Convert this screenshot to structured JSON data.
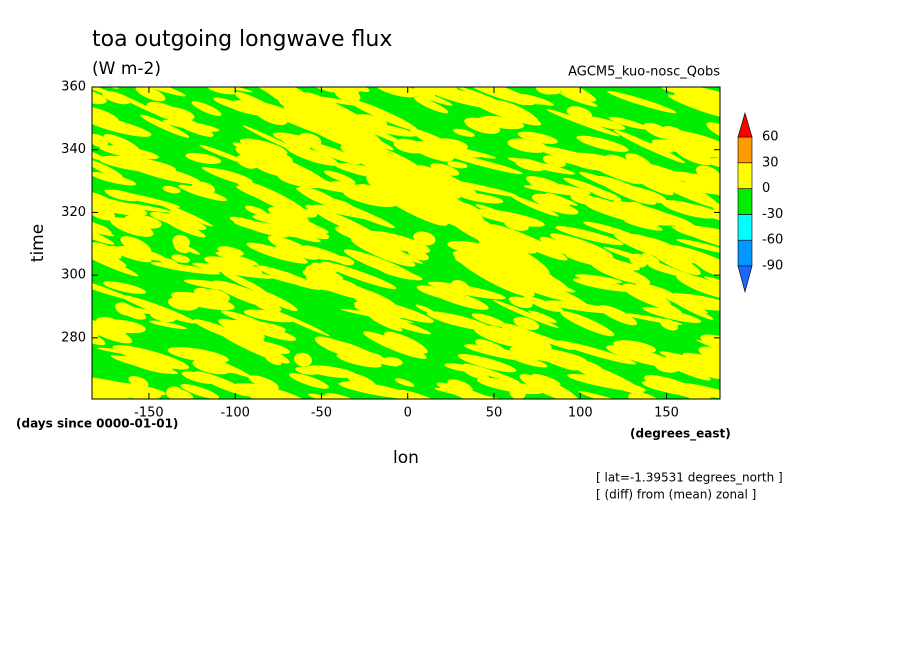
{
  "chart_data": {
    "type": "contour",
    "title": "toa outgoing longwave flux",
    "units": "(W m-2)",
    "dataset": "AGCM5_kuo-nosc_Qobs",
    "x_label": "lon",
    "y_label": "time",
    "x_units": "(degrees_east)",
    "y_units": "(days since 0000-01-01)",
    "notes": [
      "[ lat=-1.39531 degrees_north ]",
      "[ (diff) from (mean) zonal ]"
    ],
    "xlim": [
      -183,
      181
    ],
    "ylim": [
      260.5,
      360
    ],
    "xticks": [
      -150,
      -100,
      -50,
      0,
      50,
      100,
      150
    ],
    "yticks": [
      280,
      300,
      320,
      340,
      360
    ],
    "colorbar": {
      "levels": [
        -90,
        -60,
        -30,
        0,
        30,
        60
      ],
      "colors": [
        "#1a66ff",
        "#0099ff",
        "#00ffff",
        "#00ee00",
        "#ffff00",
        "#ff9900",
        "#ff0000"
      ]
    }
  }
}
